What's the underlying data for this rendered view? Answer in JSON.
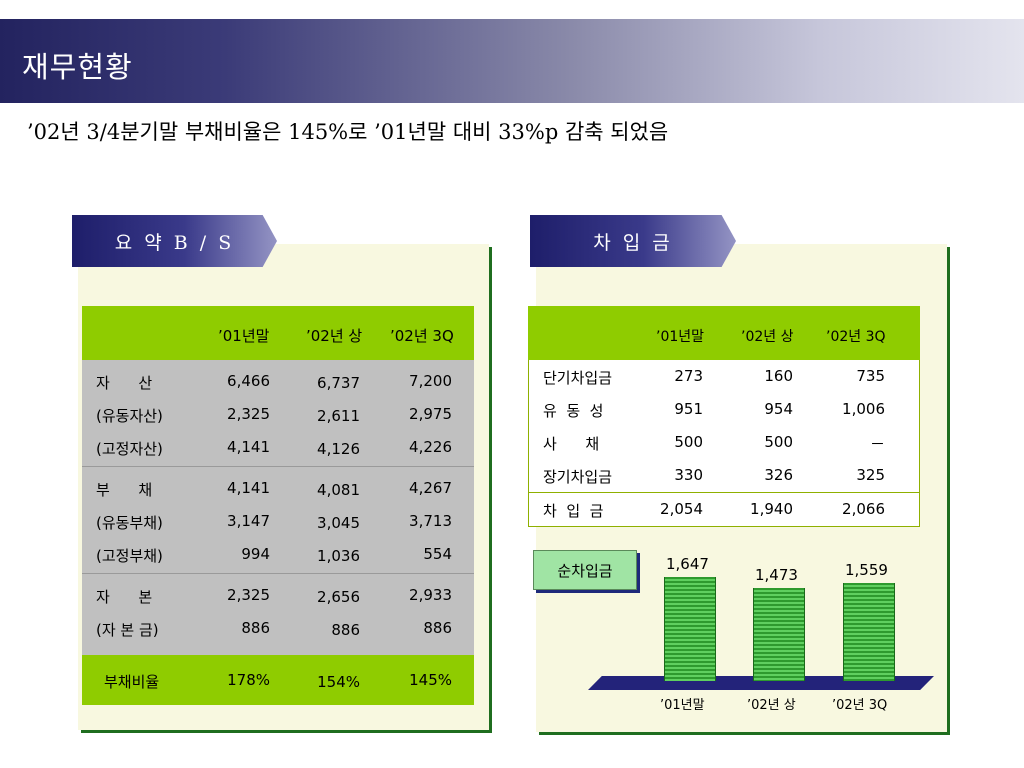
{
  "title": "재무현황",
  "subtitle": "’02년 3/4분기말 부채비율은 145%로 ’01년말 대비 33%p 감축 되었음",
  "bs": {
    "tab_label": "요 약 B / S",
    "columns": [
      "’01년말",
      "’02년 상",
      "’02년 3Q"
    ],
    "groups": [
      {
        "rows": [
          {
            "label": "자      산",
            "values": [
              "6,466",
              "6,737",
              "7,200"
            ]
          },
          {
            "label": "(유동자산)",
            "values": [
              "2,325",
              "2,611",
              "2,975"
            ]
          },
          {
            "label": "(고정자산)",
            "values": [
              "4,141",
              "4,126",
              "4,226"
            ]
          }
        ]
      },
      {
        "rows": [
          {
            "label": "부      채",
            "values": [
              "4,141",
              "4,081",
              "4,267"
            ]
          },
          {
            "label": "(유동부채)",
            "values": [
              "3,147",
              "3,045",
              "3,713"
            ]
          },
          {
            "label": "(고정부채)",
            "values": [
              "994",
              "1,036",
              "554"
            ]
          }
        ]
      },
      {
        "rows": [
          {
            "label": "자      본",
            "values": [
              "2,325",
              "2,656",
              "2,933"
            ]
          },
          {
            "label": "(자 본 금)",
            "values": [
              "886",
              "886",
              "886"
            ]
          }
        ]
      }
    ],
    "footer": {
      "label": "부채비율",
      "values": [
        "178%",
        "154%",
        "145%"
      ]
    }
  },
  "borrowings": {
    "tab_label": "차 입 금",
    "columns": [
      "’01년말",
      "’02년 상",
      "’02년 3Q"
    ],
    "rows": [
      {
        "label": "단기차입금",
        "values": [
          "273",
          "160",
          "735"
        ]
      },
      {
        "label": "유  동  성",
        "values": [
          "951",
          "954",
          "1,006"
        ]
      },
      {
        "label": "사      채",
        "values": [
          "500",
          "500",
          "－"
        ]
      },
      {
        "label": "장기차입금",
        "values": [
          "330",
          "326",
          "325"
        ]
      }
    ],
    "total": {
      "label": "차  입  금",
      "values": [
        "2,054",
        "1,940",
        "2,066"
      ]
    }
  },
  "net_borrowings_label": "순차입금",
  "chart_data": {
    "type": "bar",
    "categories": [
      "’01년말",
      "’02년 상",
      "’02년 3Q"
    ],
    "values": [
      1647,
      1473,
      1559
    ],
    "value_labels": [
      "1,647",
      "1,473",
      "1,559"
    ],
    "title": "순차입금",
    "colors": {
      "bar": "#3aa83a",
      "floor": "#23237a"
    }
  }
}
